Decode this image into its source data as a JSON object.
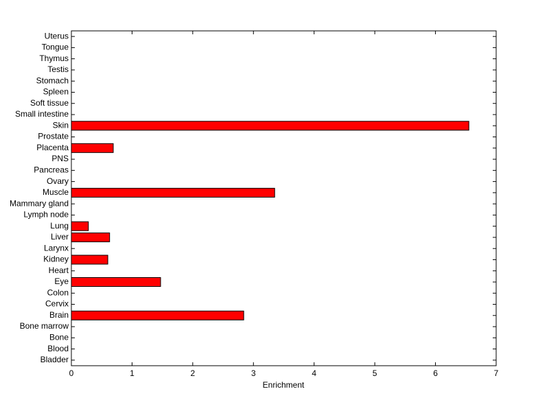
{
  "chart_data": {
    "type": "barh",
    "categories": [
      "Bladder",
      "Blood",
      "Bone",
      "Bone marrow",
      "Brain",
      "Cervix",
      "Colon",
      "Eye",
      "Heart",
      "Kidney",
      "Larynx",
      "Liver",
      "Lung",
      "Lymph node",
      "Mammary gland",
      "Muscle",
      "Ovary",
      "Pancreas",
      "PNS",
      "Placenta",
      "Prostate",
      "Skin",
      "Small intestine",
      "Soft tissue",
      "Spleen",
      "Stomach",
      "Testis",
      "Thymus",
      "Tongue",
      "Uterus"
    ],
    "values": [
      0,
      0,
      0,
      0,
      2.84,
      0,
      0,
      1.47,
      0,
      0.6,
      0,
      0.63,
      0.28,
      0,
      0,
      3.35,
      0,
      0,
      0,
      0.69,
      0,
      6.55,
      0,
      0,
      0,
      0,
      0,
      0,
      0,
      0
    ],
    "color": "#ff0000",
    "xlabel": "Enrichment",
    "xlim": [
      0,
      7
    ],
    "xticks": [
      0,
      1,
      2,
      3,
      4,
      5,
      6,
      7
    ]
  }
}
